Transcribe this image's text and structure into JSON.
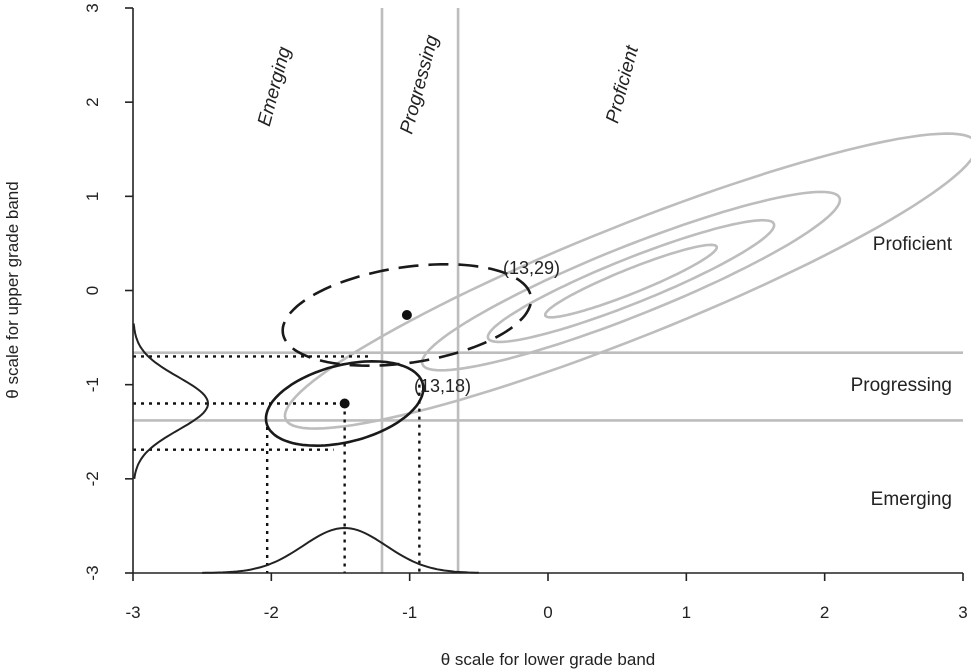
{
  "chart_data": {
    "type": "contour",
    "title": "",
    "xlabel": "θ scale for lower grade band",
    "ylabel": "θ scale for upper grade band",
    "xlim": [
      -3,
      3
    ],
    "ylim": [
      -3,
      3
    ],
    "xticks": [
      "-3",
      "-2",
      "-1",
      "0",
      "1",
      "2",
      "3"
    ],
    "yticks": [
      "-3",
      "-2",
      "-1",
      "0",
      "1",
      "2",
      "3"
    ],
    "grid": false,
    "cut_scores": {
      "lower_band": [
        -1.2,
        -0.65
      ],
      "upper_band": [
        -1.38,
        -0.66
      ]
    },
    "band_labels_lower": [
      "Emerging",
      "Progressing",
      "Proficient"
    ],
    "band_labels_upper": [
      "Proficient",
      "Progressing",
      "Emerging"
    ],
    "population_contours": {
      "center": [
        0.6,
        0.1
      ],
      "rotation_deg": 31,
      "radii": [
        [
          2.9,
          0.55
        ],
        [
          1.75,
          0.34
        ],
        [
          1.2,
          0.22
        ],
        [
          0.72,
          0.12
        ]
      ],
      "color": "#bdbdbd"
    },
    "examinees": [
      {
        "label": "(13,18)",
        "point": [
          -1.47,
          -1.2
        ],
        "interval_x": [
          -2.03,
          -0.93
        ],
        "interval_y": [
          -1.69,
          -0.7
        ],
        "ellipse": {
          "rotation_deg": 28,
          "radii": [
            0.61,
            0.39
          ]
        },
        "line_style": "solid"
      },
      {
        "label": "(13,29)",
        "point": [
          -1.02,
          -0.26
        ],
        "ellipse": {
          "rotation_deg": 15,
          "radii": [
            0.92,
            0.5
          ]
        },
        "line_style": "dashed"
      }
    ],
    "marginal_densities": [
      {
        "axis": "x",
        "mean": -1.47,
        "sd": 0.3,
        "range": [
          -2.5,
          -0.5
        ]
      },
      {
        "axis": "y",
        "mean": -1.2,
        "sd": 0.28,
        "range": [
          -2.0,
          -0.35
        ]
      }
    ]
  }
}
